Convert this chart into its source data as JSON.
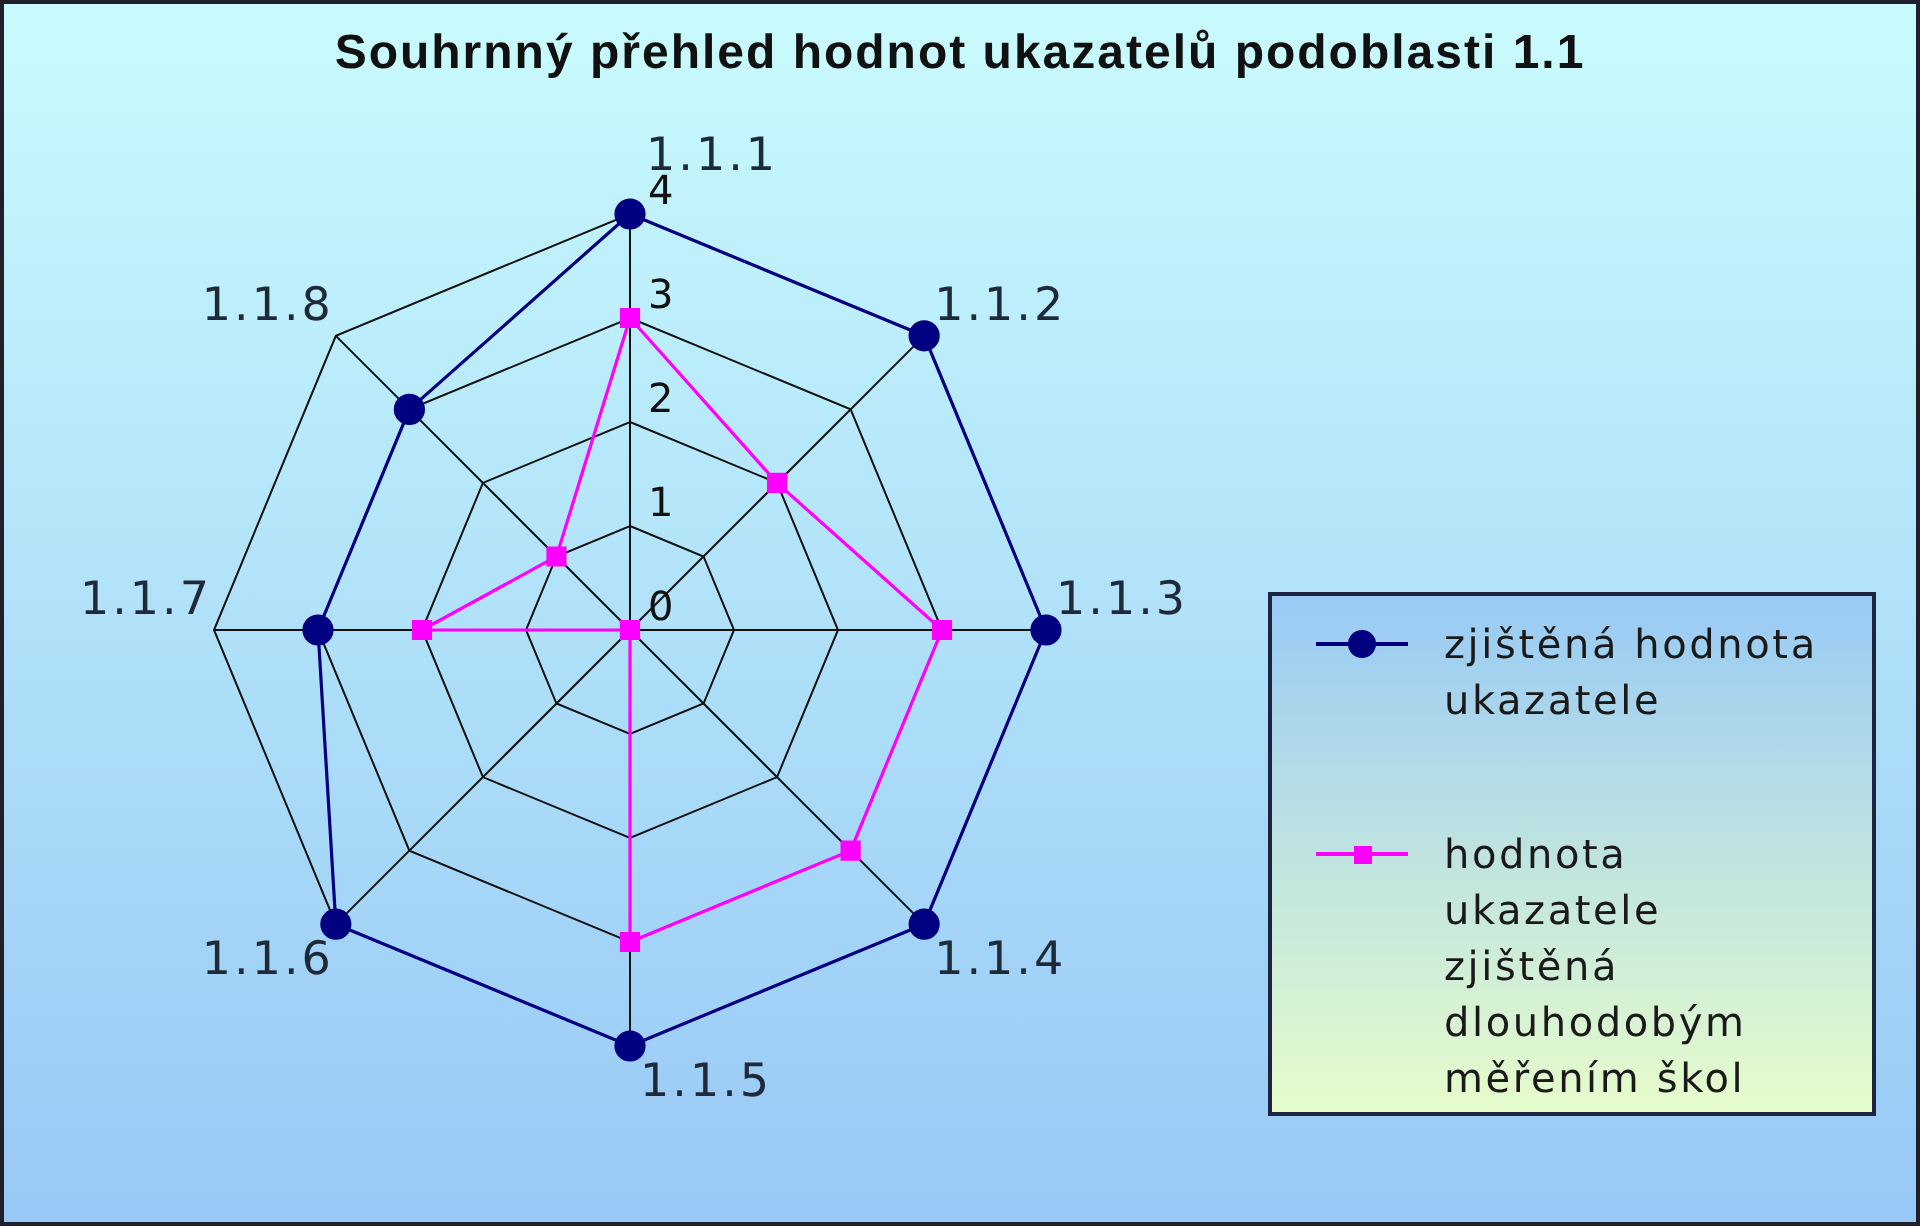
{
  "chart_data": {
    "type": "radar",
    "title": "Souhrnný přehled hodnot ukazatelů podoblasti 1.1",
    "categories": [
      "1.1.1",
      "1.1.2",
      "1.1.3",
      "1.1.4",
      "1.1.5",
      "1.1.6",
      "1.1.7",
      "1.1.8"
    ],
    "series": [
      {
        "name": "zjištěná hodnota ukazatele",
        "color": "#000080",
        "marker": "circle",
        "values": [
          4,
          4,
          4,
          4,
          4,
          4,
          3,
          3
        ]
      },
      {
        "name": "hodnota ukazatele zjištěná dlouhodobým měřením škol",
        "color": "#ff00ff",
        "marker": "square",
        "values": [
          3,
          2,
          3,
          3,
          3,
          0,
          2,
          1
        ]
      }
    ],
    "ylim": [
      0,
      4
    ],
    "yticks": [
      0,
      1,
      2,
      3,
      4
    ],
    "grid": true,
    "legend": "right"
  }
}
